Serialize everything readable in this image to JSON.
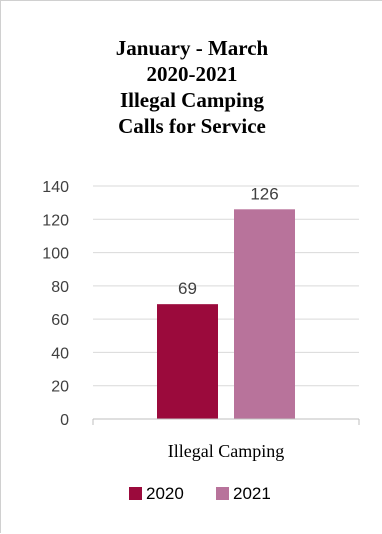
{
  "chart_data": {
    "type": "bar",
    "title_lines": [
      "January - March",
      "2020-2021",
      "Illegal Camping",
      "Calls for Service"
    ],
    "categories": [
      "Illegal Camping"
    ],
    "series": [
      {
        "name": "2020",
        "values": [
          69
        ],
        "color": "#9b0a3c"
      },
      {
        "name": "2021",
        "values": [
          126
        ],
        "color": "#b8739b"
      }
    ],
    "data_labels": [
      "69",
      "126"
    ],
    "yticks": [
      "0",
      "20",
      "40",
      "60",
      "80",
      "100",
      "120",
      "140"
    ],
    "ylim": [
      0,
      140
    ],
    "grid": true,
    "legend_position": "bottom",
    "gridline_color": "#d9d9d9",
    "axis_color": "#bfbfbf"
  }
}
